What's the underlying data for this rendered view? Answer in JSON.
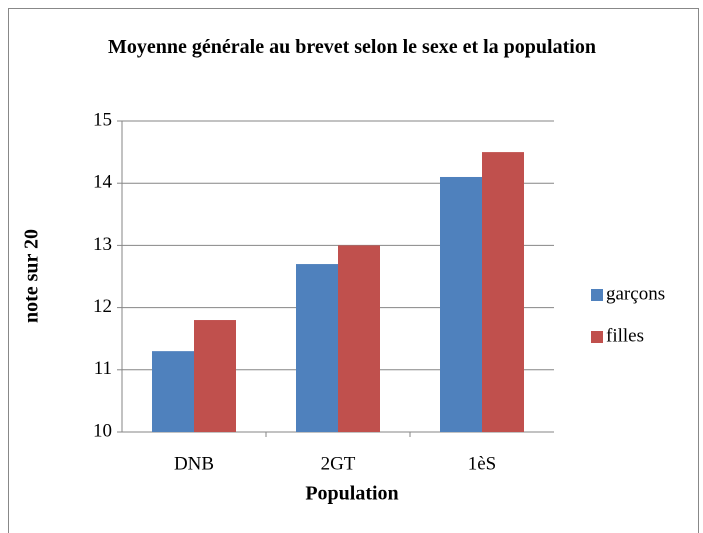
{
  "chart_data": {
    "type": "bar",
    "title": "Moyenne générale au brevet selon le sexe et la population",
    "xlabel": "Population",
    "ylabel": "note sur 20",
    "categories": [
      "DNB",
      "2GT",
      "1èS"
    ],
    "series": [
      {
        "name": "garçons",
        "color": "#4f81bd",
        "values": [
          11.3,
          12.7,
          14.1
        ]
      },
      {
        "name": "filles",
        "color": "#c0504d",
        "values": [
          11.8,
          13.0,
          14.5
        ]
      }
    ],
    "ylim": [
      10,
      15
    ],
    "yticks": [
      10,
      11,
      12,
      13,
      14,
      15
    ],
    "grid": true,
    "legend": "right"
  }
}
